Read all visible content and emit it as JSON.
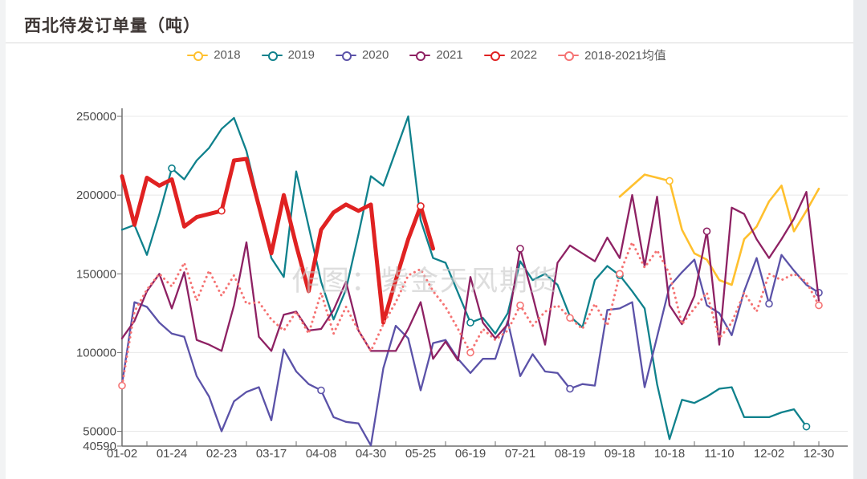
{
  "page": {
    "title": "西北待发订单量（吨）",
    "watermark": "作图：紫金天风期货"
  },
  "legend": {
    "items": [
      {
        "label": "2018",
        "color": "#FFC02E"
      },
      {
        "label": "2019",
        "color": "#0F818C"
      },
      {
        "label": "2020",
        "color": "#5B52A8"
      },
      {
        "label": "2021",
        "color": "#8E2163"
      },
      {
        "label": "2022",
        "color": "#E02222"
      },
      {
        "label": "2018-2021均值",
        "color": "#F57373"
      }
    ]
  },
  "chart_data": {
    "type": "line",
    "title": "西北待发订单量（吨）",
    "ylim": [
      40590,
      250000
    ],
    "grid": true,
    "legend_position": "top",
    "y_ticks": [
      250000,
      200000,
      150000,
      100000,
      50000,
      40590
    ],
    "x_tick_labels": [
      "01-02",
      "01-24",
      "02-23",
      "03-17",
      "04-08",
      "04-30",
      "05-25",
      "06-19",
      "07-21",
      "08-19",
      "09-18",
      "10-18",
      "11-10",
      "12-02",
      "12-30"
    ],
    "points_per_label_gap": 4,
    "total_points": 57,
    "series": [
      {
        "name": "2018",
        "color": "#FFC02E",
        "width": 2.6,
        "dash": "none",
        "start": 40,
        "marker_indices": [
          44
        ],
        "values": [
          199000,
          206000,
          213000,
          211000,
          209000,
          178000,
          163000,
          159000,
          146000,
          143000,
          172000,
          180000,
          196000,
          206000,
          177000,
          190000,
          204000
        ]
      },
      {
        "name": "2019",
        "color": "#0F818C",
        "width": 2.3,
        "dash": "none",
        "start": 0,
        "marker_indices": [
          4,
          28,
          40,
          55
        ],
        "values": [
          178000,
          181000,
          162000,
          188000,
          217000,
          210000,
          222000,
          230000,
          242000,
          249000,
          228000,
          195000,
          160000,
          148000,
          215000,
          180000,
          145000,
          121000,
          140000,
          175000,
          212000,
          206000,
          228000,
          250000,
          184000,
          160000,
          157000,
          138000,
          119000,
          122000,
          112000,
          125000,
          158000,
          146000,
          150000,
          143000,
          123000,
          116000,
          146000,
          155000,
          149000,
          139000,
          128000,
          80000,
          45000,
          70000,
          68000,
          72000,
          77000,
          78000,
          59000,
          59000,
          59000,
          62000,
          64000,
          53000
        ]
      },
      {
        "name": "2020",
        "color": "#5B52A8",
        "width": 2.3,
        "dash": "none",
        "start": 0,
        "marker_indices": [
          16,
          36,
          52,
          56
        ],
        "values": [
          80000,
          132000,
          129000,
          119000,
          112000,
          110000,
          85000,
          72000,
          50000,
          69000,
          75000,
          78000,
          57000,
          102000,
          88000,
          80000,
          76000,
          59000,
          56000,
          55000,
          41000,
          90000,
          117000,
          109000,
          76000,
          106000,
          108000,
          96000,
          87000,
          96000,
          96000,
          120000,
          85000,
          99000,
          88000,
          87000,
          77000,
          80000,
          79000,
          127000,
          128000,
          132000,
          78000,
          110000,
          142000,
          151000,
          159000,
          130000,
          125000,
          111000,
          139000,
          160000,
          131000,
          162000,
          152000,
          143000,
          138000
        ]
      },
      {
        "name": "2021",
        "color": "#8E2163",
        "width": 2.3,
        "dash": "none",
        "start": 0,
        "marker_indices": [
          32,
          47
        ],
        "values": [
          109000,
          120000,
          139000,
          150000,
          128000,
          151000,
          108000,
          105000,
          101000,
          130000,
          170000,
          110000,
          101000,
          124000,
          126000,
          114000,
          115000,
          127000,
          145000,
          114000,
          101000,
          101000,
          101000,
          115000,
          132000,
          96000,
          107000,
          95000,
          148000,
          119000,
          109000,
          118000,
          166000,
          136000,
          105000,
          157000,
          168000,
          163000,
          158000,
          173000,
          160000,
          200000,
          155000,
          199000,
          130000,
          118000,
          136000,
          177000,
          105000,
          192000,
          188000,
          172000,
          160000,
          172000,
          185000,
          202000,
          133000
        ]
      },
      {
        "name": "2022",
        "color": "#E02222",
        "width": 5,
        "dash": "none",
        "start": 0,
        "marker_indices": [
          8,
          24
        ],
        "values": [
          212000,
          181000,
          211000,
          206000,
          210000,
          180000,
          186000,
          188000,
          190000,
          222000,
          223000,
          193000,
          163000,
          200000,
          168000,
          139000,
          178000,
          189000,
          194000,
          190000,
          194000,
          119000,
          146000,
          172000,
          193000,
          166000
        ]
      },
      {
        "name": "2018-2021均值",
        "color": "#F57373",
        "width": 3,
        "dash": "dotted",
        "start": 0,
        "marker_indices": [
          0,
          28,
          32,
          36,
          40,
          56
        ],
        "values": [
          79000,
          126000,
          140000,
          150000,
          142000,
          157000,
          133000,
          152000,
          136000,
          149000,
          131000,
          132000,
          121000,
          114000,
          126000,
          112000,
          138000,
          112000,
          129000,
          114000,
          101000,
          118000,
          132000,
          149000,
          153000,
          139000,
          129000,
          115000,
          100000,
          115000,
          108000,
          114000,
          130000,
          117000,
          126000,
          130000,
          122000,
          115000,
          131000,
          117000,
          150000,
          170000,
          154000,
          165000,
          150000,
          118000,
          128000,
          138000,
          109000,
          119000,
          138000,
          126000,
          150000,
          146000,
          150000,
          145000,
          130000
        ]
      }
    ],
    "axis_color": "#6e6e6e",
    "grid_color": "#e8e8e8",
    "tick_label_color": "#4a4a4a"
  }
}
